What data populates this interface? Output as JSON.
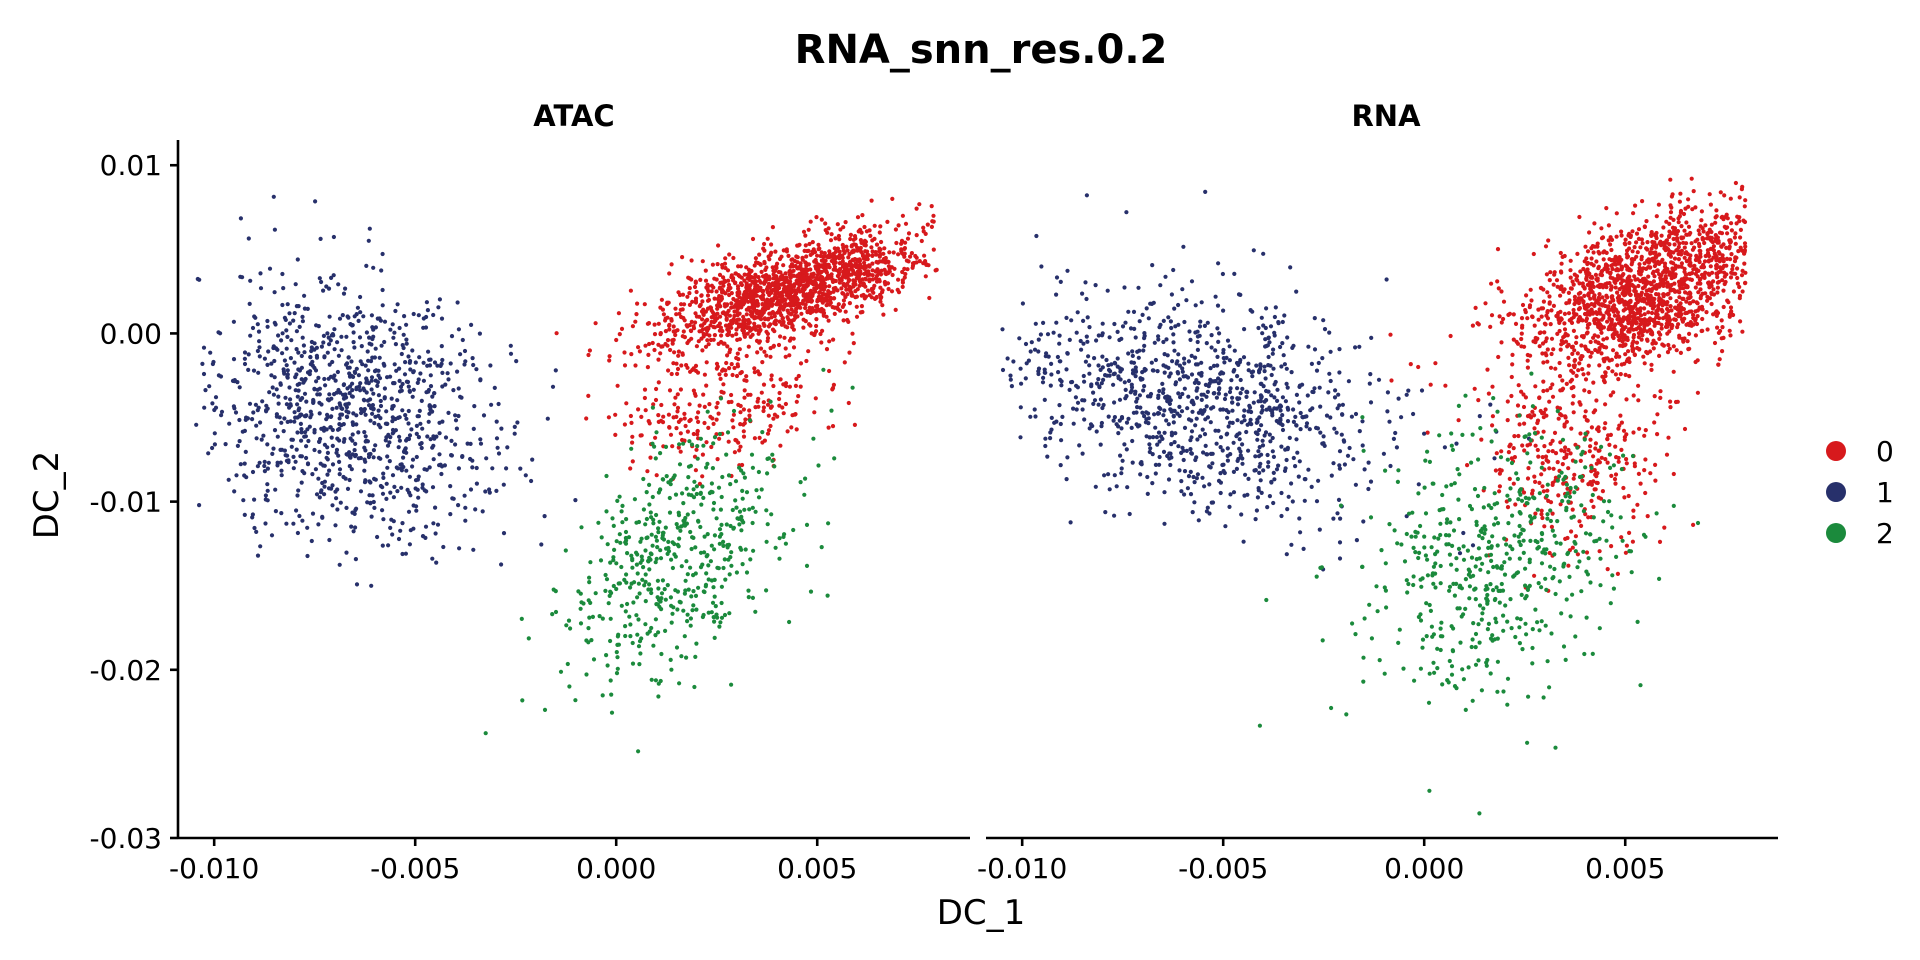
{
  "chart_data": {
    "type": "scatter",
    "title": "RNA_snn_res.0.2",
    "xlabel": "DC_1",
    "ylabel": "DC_2",
    "xlim": [
      -0.0109,
      0.0088
    ],
    "ylim": [
      -0.03,
      0.0115
    ],
    "x_ticks": [
      -0.01,
      -0.005,
      0.0,
      0.005
    ],
    "x_tick_labels": [
      "-0.010",
      "-0.005",
      "0.000",
      "0.005"
    ],
    "y_ticks": [
      0.01,
      0.0,
      -0.01,
      -0.02,
      -0.03
    ],
    "y_tick_labels": [
      "0.01",
      "0.00",
      "-0.01",
      "-0.02",
      "-0.03"
    ],
    "grid": false,
    "legend_position": "right",
    "legend": [
      {
        "label": "0",
        "color": "#d7191c"
      },
      {
        "label": "1",
        "color": "#27306b"
      },
      {
        "label": "2",
        "color": "#1b8a3c"
      }
    ],
    "facets": [
      {
        "label": "ATAC",
        "clusters": [
          {
            "name": "0",
            "color": "#d7191c",
            "n": 1600,
            "center": [
              0.0043,
              0.0025
            ],
            "spread": [
              0.0016,
              0.0017
            ],
            "rho": 0.62
          },
          {
            "name": "0",
            "color": "#d7191c",
            "n": 260,
            "center": [
              0.0028,
              -0.0045
            ],
            "spread": [
              0.0013,
              0.0018
            ],
            "rho": 0.2
          },
          {
            "name": "1",
            "color": "#27306b",
            "n": 1050,
            "center": [
              -0.0066,
              -0.0045
            ],
            "spread": [
              0.0018,
              0.0038
            ],
            "rho": -0.2
          },
          {
            "name": "2",
            "color": "#1b8a3c",
            "n": 520,
            "center": [
              0.0015,
              -0.0135
            ],
            "spread": [
              0.0014,
              0.0038
            ],
            "rho": 0.45
          }
        ]
      },
      {
        "label": "RNA",
        "clusters": [
          {
            "name": "0",
            "color": "#d7191c",
            "n": 1650,
            "center": [
              0.0055,
              0.0025
            ],
            "spread": [
              0.0016,
              0.0025
            ],
            "rho": 0.5
          },
          {
            "name": "0",
            "color": "#d7191c",
            "n": 330,
            "center": [
              0.0038,
              -0.0075
            ],
            "spread": [
              0.0011,
              0.0028
            ],
            "rho": 0.1
          },
          {
            "name": "1",
            "color": "#27306b",
            "n": 1050,
            "center": [
              -0.0058,
              -0.004
            ],
            "spread": [
              0.0024,
              0.0035
            ],
            "rho": -0.3
          },
          {
            "name": "2",
            "color": "#1b8a3c",
            "n": 540,
            "center": [
              0.0018,
              -0.0135
            ],
            "spread": [
              0.0017,
              0.0042
            ],
            "rho": 0.25
          }
        ]
      }
    ]
  }
}
